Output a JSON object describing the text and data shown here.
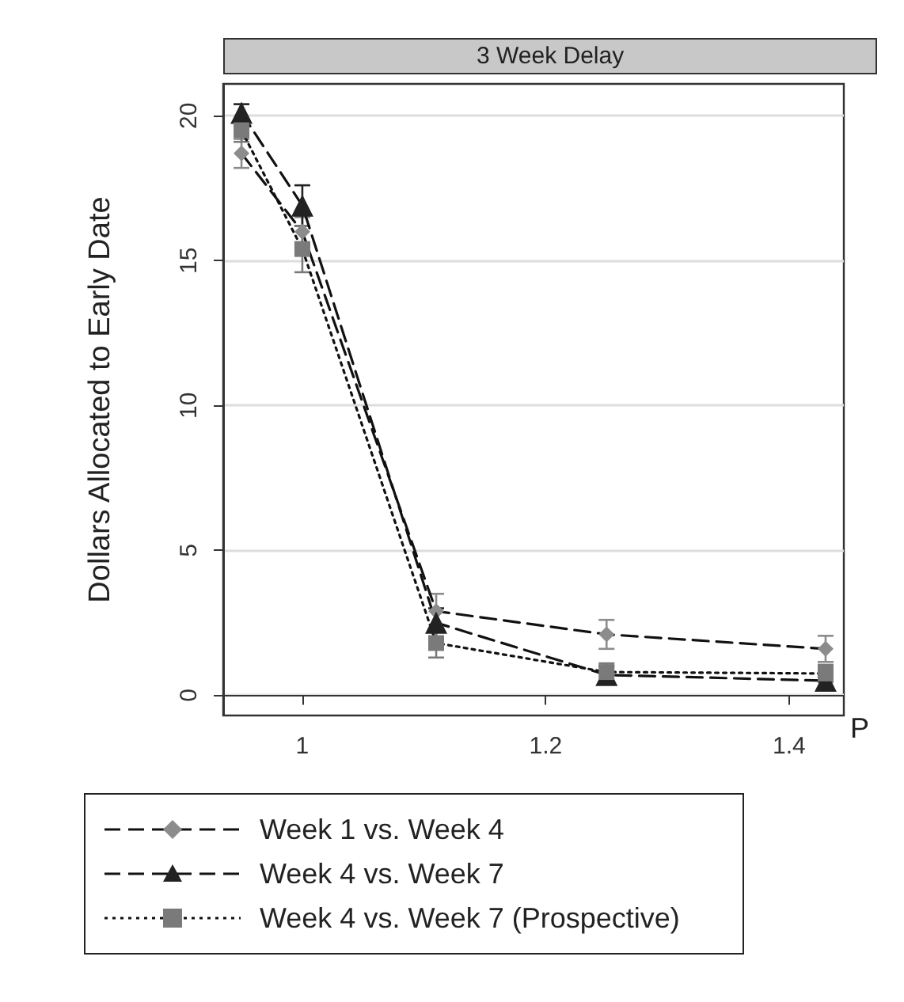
{
  "chart_data": {
    "type": "line",
    "title": "3 Week Delay",
    "xlabel": "P",
    "ylabel": "Dollars Allocated to Early Date",
    "x": [
      0.95,
      1,
      1.11,
      1.25,
      1.43
    ],
    "series": [
      {
        "name": "Week 1 vs. Week 4",
        "color": "#8c8c8c",
        "marker": "diamond",
        "line_style": "dashed",
        "values": [
          18.7,
          16.0,
          2.9,
          2.1,
          1.6
        ],
        "errors": [
          0.5,
          0.5,
          0.6,
          0.5,
          0.45
        ]
      },
      {
        "name": "Week 4 vs. Week 7",
        "color": "#222222",
        "marker": "triangle",
        "line_style": "dashed",
        "values": [
          20.1,
          16.9,
          2.5,
          0.7,
          0.5
        ],
        "errors": [
          0.3,
          0.7,
          0.5,
          0.3,
          0.3
        ]
      },
      {
        "name": "Week 4 vs. Week 7 (Prospective)",
        "color": "#7a7a7a",
        "marker": "square",
        "line_style": "dotted",
        "values": [
          19.5,
          15.4,
          1.8,
          0.8,
          0.75
        ],
        "errors": [
          0.4,
          0.8,
          0.5,
          0.3,
          0.3
        ]
      }
    ],
    "xlim": [
      0.935,
      1.445
    ],
    "xticks": [
      1,
      1.2,
      1.4
    ],
    "ylim": [
      -0.7,
      21.1
    ],
    "yticks": [
      0,
      5,
      10,
      15,
      20
    ],
    "grid": "y",
    "legend": "bottom"
  }
}
